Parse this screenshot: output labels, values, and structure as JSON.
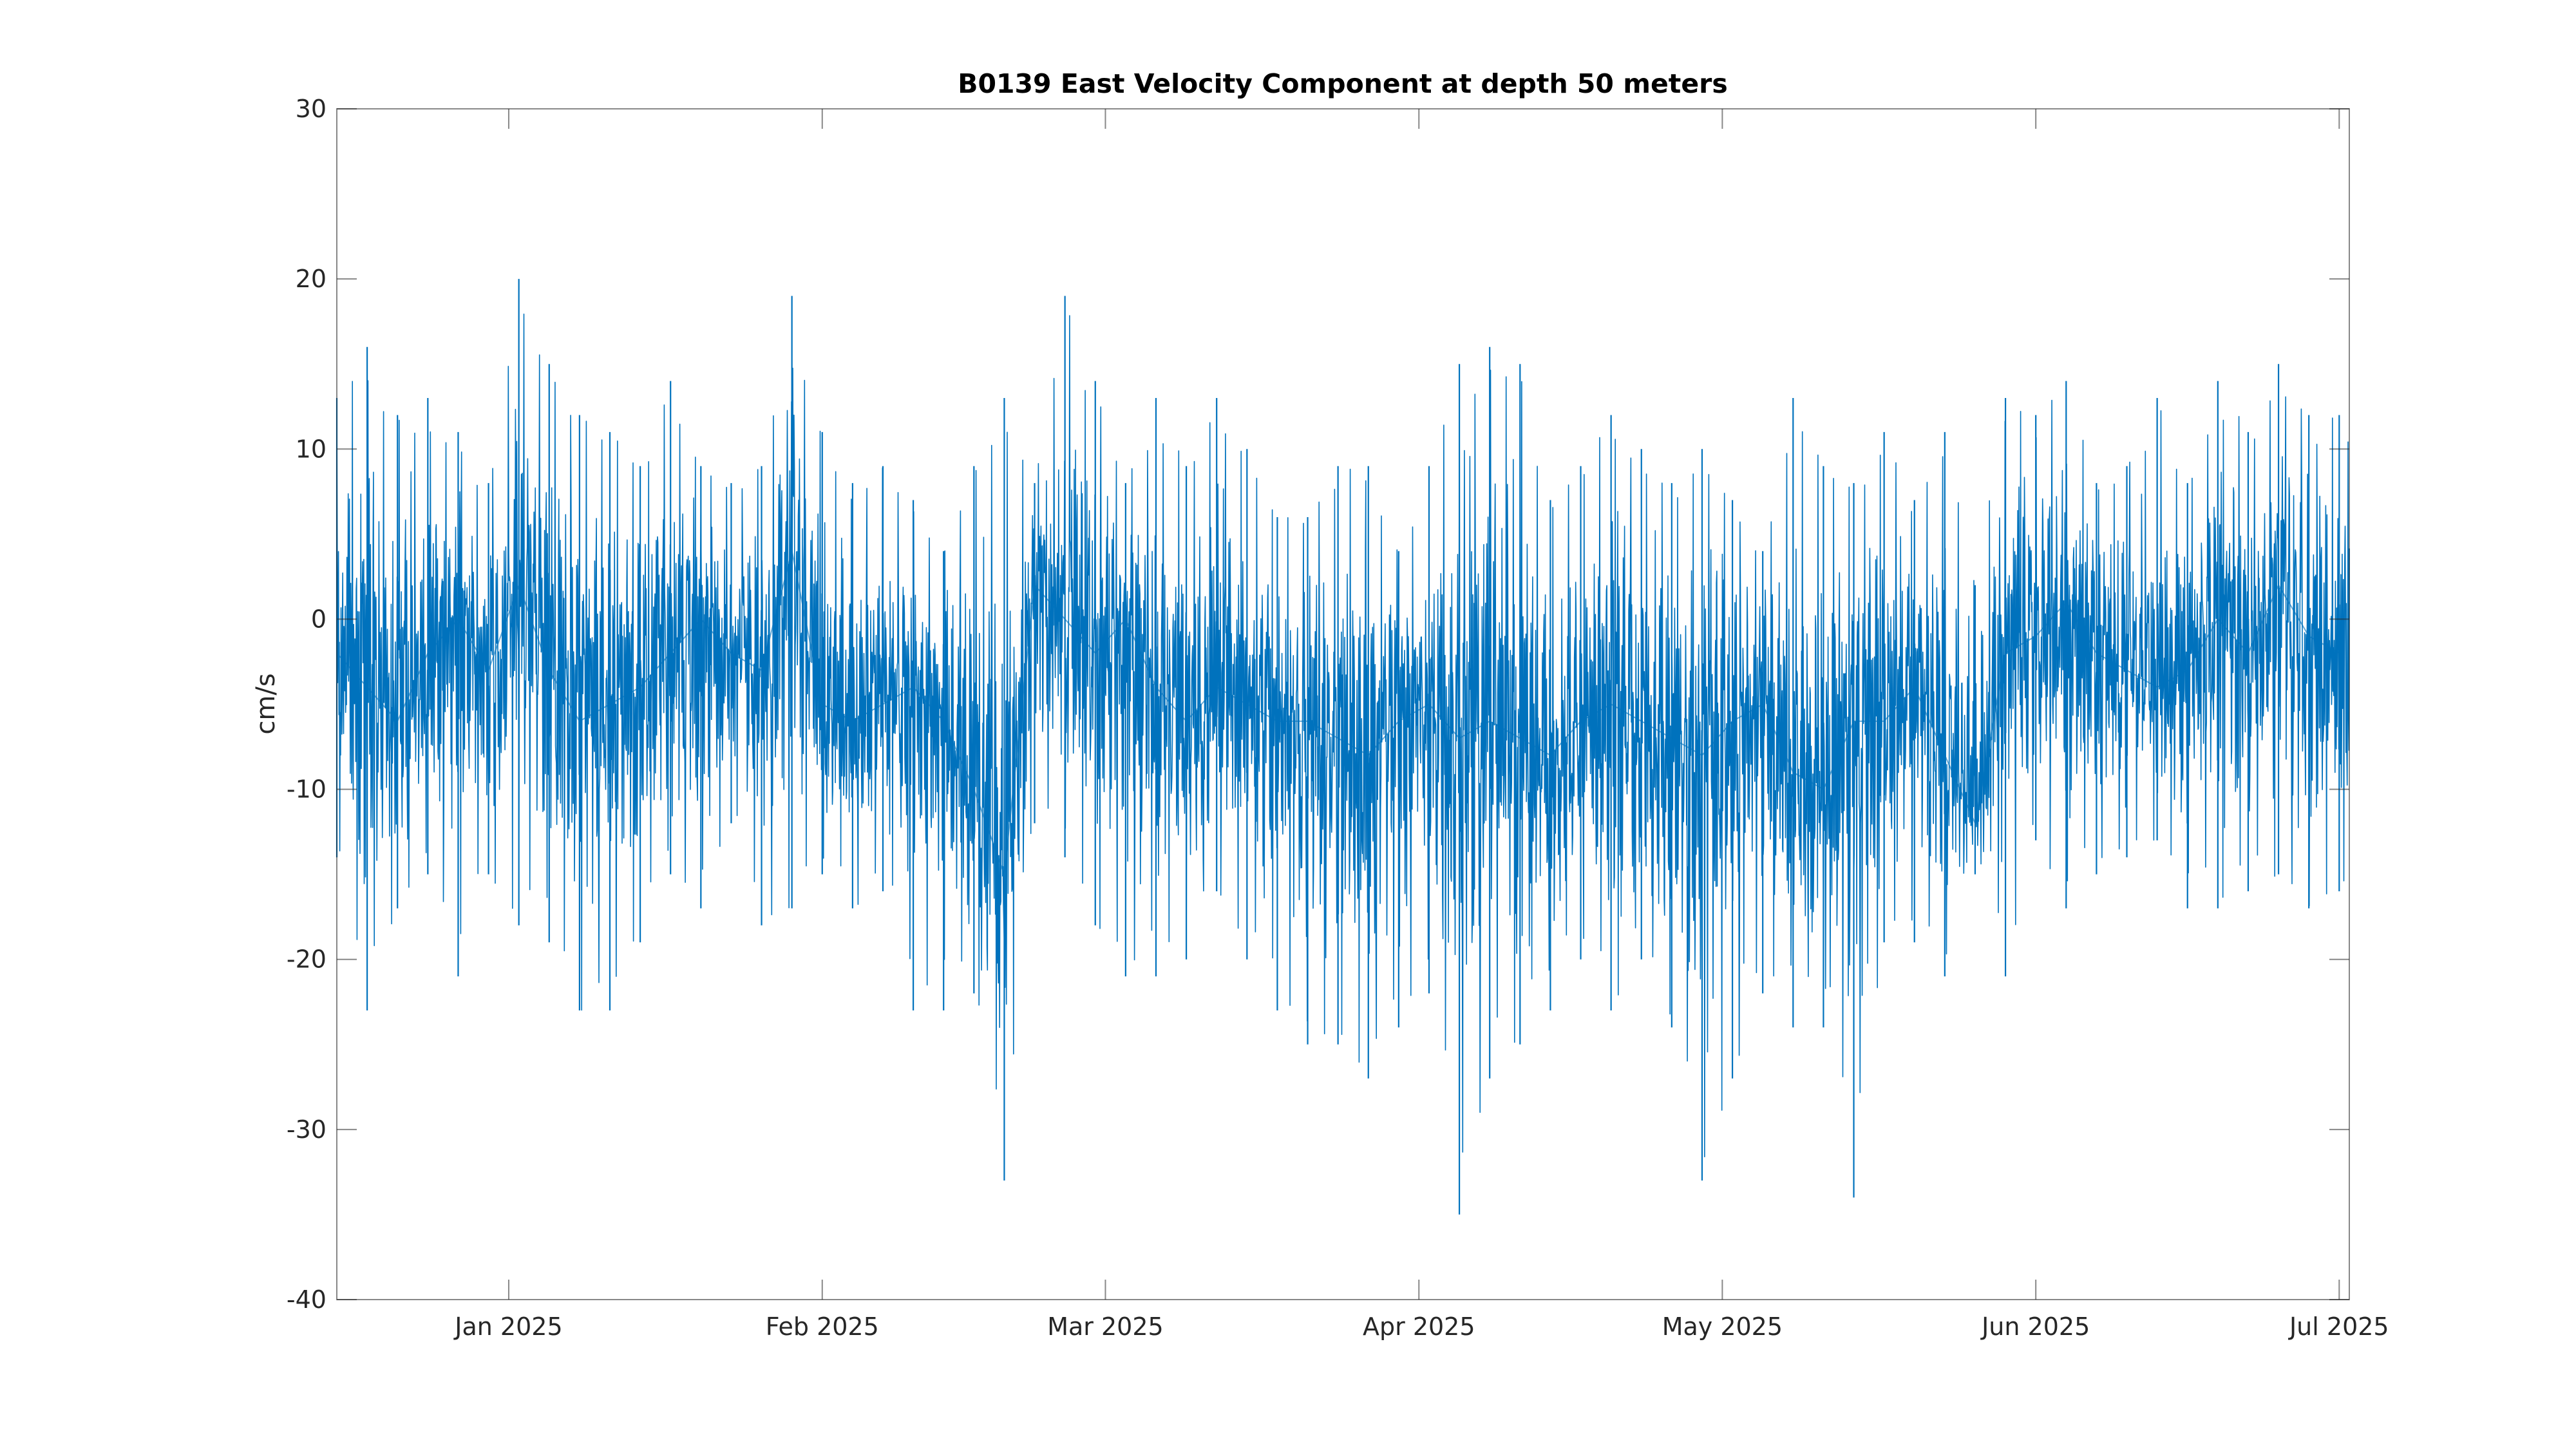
{
  "chart_data": {
    "type": "line",
    "title": "B0139 East Velocity Component at depth 50 meters",
    "xlabel": "",
    "ylabel": "cm/s",
    "x_range": [
      "2024-12-15",
      "2025-07-02"
    ],
    "ylim": [
      -40,
      30
    ],
    "y_ticks": [
      -40,
      -30,
      -20,
      -10,
      0,
      10,
      20,
      30
    ],
    "y_tick_labels": [
      "-40",
      "-30",
      "-20",
      "-10",
      "0",
      "10",
      "20",
      "30"
    ],
    "x_ticks": [
      "2025-01-01",
      "2025-02-01",
      "2025-03-01",
      "2025-04-01",
      "2025-05-01",
      "2025-06-01",
      "2025-07-01"
    ],
    "x_tick_labels": [
      "Jan 2025",
      "Feb 2025",
      "Mar 2025",
      "Apr 2025",
      "May 2025",
      "Jun 2025",
      "Jul 2025"
    ],
    "grid": false,
    "line_color": "#0072BD",
    "series": [
      {
        "name": "",
        "x": [
          "2024-12-15",
          "2024-12-18",
          "2024-12-21",
          "2024-12-24",
          "2024-12-27",
          "2024-12-30",
          "2025-01-02",
          "2025-01-05",
          "2025-01-08",
          "2025-01-11",
          "2025-01-14",
          "2025-01-17",
          "2025-01-20",
          "2025-01-23",
          "2025-01-26",
          "2025-01-29",
          "2025-02-01",
          "2025-02-04",
          "2025-02-07",
          "2025-02-10",
          "2025-02-13",
          "2025-02-16",
          "2025-02-19",
          "2025-02-22",
          "2025-02-25",
          "2025-02-28",
          "2025-03-03",
          "2025-03-06",
          "2025-03-09",
          "2025-03-12",
          "2025-03-15",
          "2025-03-18",
          "2025-03-21",
          "2025-03-24",
          "2025-03-27",
          "2025-03-30",
          "2025-04-02",
          "2025-04-05",
          "2025-04-08",
          "2025-04-11",
          "2025-04-14",
          "2025-04-17",
          "2025-04-20",
          "2025-04-23",
          "2025-04-26",
          "2025-04-29",
          "2025-05-02",
          "2025-05-05",
          "2025-05-08",
          "2025-05-11",
          "2025-05-14",
          "2025-05-17",
          "2025-05-20",
          "2025-05-23",
          "2025-05-26",
          "2025-05-29",
          "2025-06-01",
          "2025-06-04",
          "2025-06-07",
          "2025-06-10",
          "2025-06-13",
          "2025-06-16",
          "2025-06-19",
          "2025-06-22",
          "2025-06-25",
          "2025-06-28",
          "2025-07-01"
        ],
        "mean": [
          -2,
          -4,
          -6,
          -2,
          0,
          -3,
          2,
          -3,
          -6,
          -5,
          -4,
          -2,
          0,
          -2,
          -3,
          4,
          -5,
          -6,
          -5,
          -4,
          -6,
          -10,
          -15,
          2,
          0,
          -2,
          0,
          -4,
          -6,
          -4,
          -5,
          -6,
          -6,
          -7,
          -8,
          -6,
          -5,
          -7,
          -6,
          -7,
          -8,
          -6,
          -5,
          -6,
          -7,
          -8,
          -6,
          -5,
          -9,
          -10,
          -6,
          -6,
          -4,
          -8,
          -12,
          -2,
          -1,
          1,
          -2,
          -3,
          -4,
          -3,
          0,
          -2,
          2,
          -1,
          -2
        ],
        "max": [
          13,
          16,
          12,
          13,
          11,
          8,
          20,
          15,
          12,
          11,
          9,
          14,
          9,
          8,
          9,
          19,
          11,
          8,
          9,
          7,
          4,
          9,
          13,
          8,
          19,
          14,
          8,
          13,
          9,
          13,
          10,
          6,
          6,
          9,
          9,
          4,
          9,
          15,
          16,
          15,
          7,
          9,
          12,
          10,
          8,
          10,
          7,
          4,
          13,
          9,
          8,
          11,
          7,
          11,
          2,
          13,
          12,
          14,
          8,
          9,
          13,
          8,
          14,
          11,
          15,
          12,
          12
        ],
        "min": [
          -14,
          -23,
          -17,
          -15,
          -21,
          -15,
          -18,
          -19,
          -23,
          -23,
          -19,
          -15,
          -17,
          -12,
          -18,
          -17,
          -15,
          -17,
          -16,
          -23,
          -23,
          -22,
          -33,
          -12,
          -14,
          -18,
          -21,
          -21,
          -20,
          -16,
          -20,
          -23,
          -25,
          -25,
          -27,
          -24,
          -22,
          -35,
          -27,
          -25,
          -23,
          -20,
          -23,
          -20,
          -24,
          -33,
          -27,
          -22,
          -24,
          -24,
          -34,
          -19,
          -19,
          -21,
          -15,
          -21,
          -13,
          -17,
          -15,
          -14,
          -13,
          -17,
          -17,
          -16,
          -15,
          -17,
          -16
        ]
      }
    ]
  }
}
